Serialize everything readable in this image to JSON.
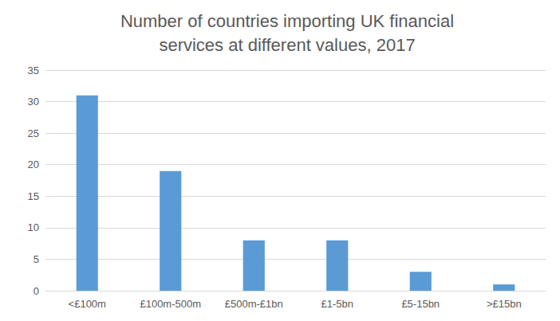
{
  "chart_data": {
    "type": "bar",
    "title": "Number of countries importing UK financial\nservices at different values, 2017",
    "categories": [
      "<£100m",
      "£100m-500m",
      "£500m-£1bn",
      "£1-5bn",
      "£5-15bn",
      ">£15bn"
    ],
    "values": [
      31,
      19,
      8,
      8,
      3,
      1
    ],
    "color": "#5b9bd5",
    "ylim": [
      0,
      35
    ],
    "yticks": [
      0,
      5,
      10,
      15,
      20,
      25,
      30,
      35
    ],
    "grid": true
  }
}
